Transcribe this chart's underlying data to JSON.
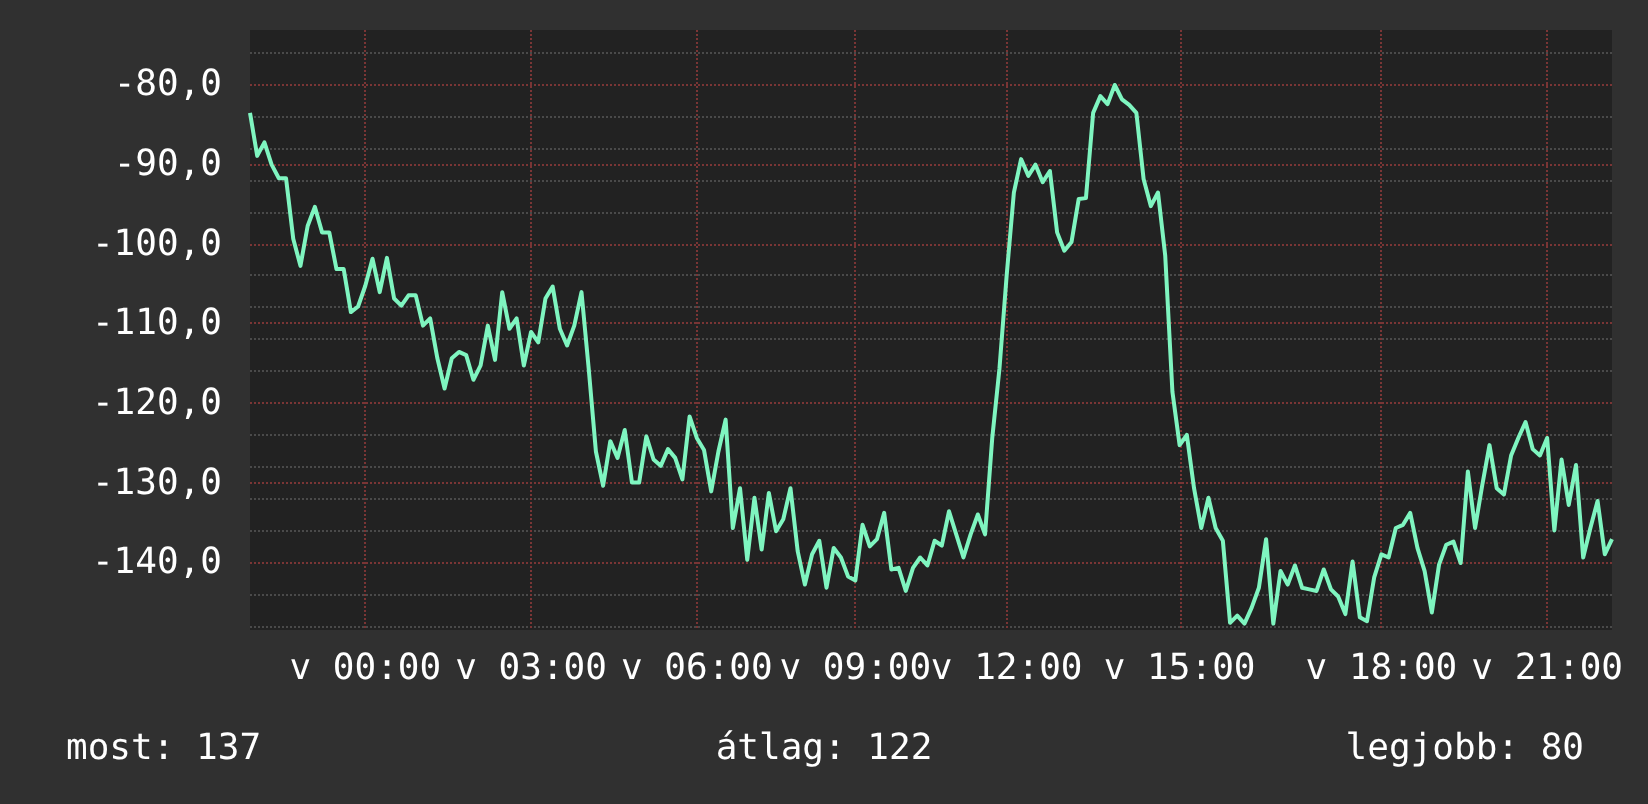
{
  "chart_data": {
    "type": "line",
    "categories": [
      null,
      null,
      null,
      null,
      null,
      null,
      null,
      null,
      null,
      null,
      null,
      null,
      null,
      null,
      null,
      null,
      "v 00:00",
      null,
      null,
      null,
      null,
      null,
      null,
      null,
      null,
      null,
      null,
      null,
      null,
      null,
      null,
      null,
      null,
      null,
      null,
      null,
      null,
      null,
      null,
      "v 03:00",
      null,
      null,
      null,
      null,
      null,
      null,
      null,
      null,
      null,
      null,
      null,
      null,
      null,
      null,
      null,
      null,
      null,
      null,
      null,
      null,
      null,
      null,
      "v 06:00",
      null,
      null,
      null,
      null,
      null,
      null,
      null,
      null,
      null,
      null,
      null,
      null,
      null,
      null,
      null,
      null,
      null,
      null,
      null,
      null,
      null,
      "v 09:00",
      null,
      null,
      null,
      null,
      null,
      null,
      null,
      null,
      null,
      null,
      null,
      null,
      null,
      null,
      null,
      null,
      null,
      null,
      null,
      null,
      "v 12:00",
      null,
      null,
      null,
      null,
      null,
      null,
      null,
      null,
      null,
      null,
      null,
      null,
      null,
      null,
      null,
      null,
      null,
      null,
      null,
      null,
      null,
      null,
      null,
      "v 15:00",
      null,
      null,
      null,
      null,
      null,
      null,
      null,
      null,
      null,
      null,
      null,
      null,
      null,
      null,
      null,
      null,
      null,
      null,
      null,
      null,
      null,
      null,
      null,
      null,
      null,
      null,
      null,
      "v 18:00",
      null,
      null,
      null,
      null,
      null,
      null,
      null,
      null,
      null,
      null,
      null,
      null,
      null,
      null,
      null,
      null,
      null,
      null,
      null,
      null,
      null,
      null,
      "v 21:00",
      null,
      null,
      null,
      null,
      null,
      null,
      null,
      null,
      null
    ],
    "series": [
      {
        "color": "#7ff5c0",
        "values": [
          -83.6,
          -89,
          -87.3,
          -90.1,
          -91.8,
          -91.8,
          -99.4,
          -102.8,
          -97.8,
          -95.4,
          -98.6,
          -98.6,
          -103.2,
          -103.2,
          -108.6,
          -107.9,
          -105.3,
          -101.9,
          -106.1,
          -101.8,
          -106.9,
          -107.8,
          -106.5,
          -106.5,
          -110.3,
          -109.4,
          -114.4,
          -118.2,
          -114.4,
          -113.6,
          -114,
          -117.1,
          -115.3,
          -110.3,
          -114.6,
          -106.1,
          -110.7,
          -109.4,
          -115.3,
          -111.1,
          -112.4,
          -106.9,
          -105.4,
          -110.7,
          -112.8,
          -110.3,
          -106.1,
          -115.7,
          -126.1,
          -130.4,
          -124.8,
          -126.9,
          -123.4,
          -130,
          -130,
          -124.2,
          -127.1,
          -127.9,
          -125.8,
          -126.9,
          -129.6,
          -121.7,
          -124.4,
          -125.9,
          -131.1,
          -126.1,
          -122.1,
          -135.7,
          -130.7,
          -139.7,
          -131.9,
          -138.4,
          -131.3,
          -136.1,
          -134.6,
          -130.7,
          -138.6,
          -142.8,
          -139,
          -137.3,
          -143.2,
          -138.2,
          -139.4,
          -141.8,
          -142.3,
          -135.3,
          -138,
          -137.1,
          -133.8,
          -140.9,
          -140.7,
          -143.6,
          -140.7,
          -139.4,
          -140.4,
          -137.3,
          -137.9,
          -133.6,
          -136.5,
          -139.4,
          -136.5,
          -134,
          -136.5,
          -124.4,
          -115.7,
          -104,
          -93.6,
          -89.4,
          -91.5,
          -90.1,
          -92.3,
          -90.9,
          -98.6,
          -100.9,
          -99.8,
          -94.4,
          -94.3,
          -83.6,
          -81.5,
          -82.5,
          -80.1,
          -81.9,
          -82.6,
          -83.6,
          -91.9,
          -95.3,
          -93.6,
          -101.5,
          -118.6,
          -125.3,
          -124,
          -130.7,
          -135.7,
          -131.9,
          -135.7,
          -137.3,
          -147.6,
          -146.7,
          -147.7,
          -145.7,
          -143.2,
          -137.1,
          -147.7,
          -141.1,
          -142.8,
          -140.4,
          -143.2,
          -143.4,
          -143.6,
          -140.9,
          -143.4,
          -144.3,
          -146.5,
          -139.9,
          -146.9,
          -147.4,
          -141.9,
          -139,
          -139.4,
          -135.7,
          -135.3,
          -133.8,
          -138.2,
          -141.1,
          -146.3,
          -140.3,
          -137.8,
          -137.4,
          -140.1,
          -128.6,
          -135.7,
          -130.3,
          -125.3,
          -130.7,
          -131.5,
          -126.6,
          -124.4,
          -122.4,
          -125.8,
          -126.6,
          -124.4,
          -136,
          -127.1,
          -132.8,
          -127.8,
          -139.4,
          -135.7,
          -132.3,
          -139,
          -137.1
        ]
      }
    ],
    "ylim": [
      -148.5,
      -73.2
    ],
    "yticks": [
      {
        "value": -140,
        "label": "-140,0"
      },
      {
        "value": -130,
        "label": "-130,0"
      },
      {
        "value": -120,
        "label": "-120,0"
      },
      {
        "value": -110,
        "label": "-110,0"
      },
      {
        "value": -100,
        "label": "-100,0"
      },
      {
        "value": -90,
        "label": "-90,0"
      },
      {
        "value": -80,
        "label": "-80,0"
      }
    ],
    "grid": true,
    "annotations": [
      "most: 137",
      "átlag: 122",
      "legjobb: 80"
    ]
  }
}
